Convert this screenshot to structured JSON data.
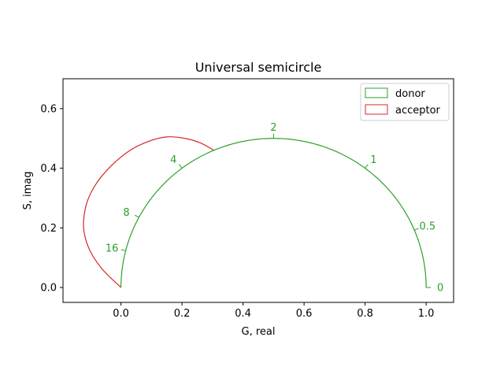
{
  "chart_data": {
    "type": "line",
    "title": "Universal semicircle",
    "xlabel": "G, real",
    "ylabel": "S, imag",
    "xlim": [
      -0.19,
      1.09
    ],
    "ylim": [
      -0.05,
      0.7
    ],
    "xticks": [
      0.0,
      0.2,
      0.4,
      0.6,
      0.8,
      1.0
    ],
    "xtick_labels": [
      "0.0",
      "0.2",
      "0.4",
      "0.6",
      "0.8",
      "1.0"
    ],
    "yticks": [
      0.0,
      0.2,
      0.4,
      0.6
    ],
    "ytick_labels": [
      "0.0",
      "0.2",
      "0.4",
      "0.6"
    ],
    "grid": false,
    "legend_position": "top-right",
    "colors": {
      "donor": "#2ca02c",
      "acceptor": "#d62728"
    },
    "series": [
      {
        "name": "donor",
        "description_curve": "semicircle",
        "center": [
          0.5,
          0.0
        ],
        "radius": 0.5
      },
      {
        "name": "acceptor",
        "description_curve": "arc",
        "points": [
          [
            0.0,
            0.0
          ],
          [
            -0.06,
            0.06
          ],
          [
            -0.1,
            0.12
          ],
          [
            -0.12,
            0.18
          ],
          [
            -0.122,
            0.23
          ],
          [
            -0.11,
            0.29
          ],
          [
            -0.08,
            0.35
          ],
          [
            -0.03,
            0.41
          ],
          [
            0.03,
            0.46
          ],
          [
            0.09,
            0.49
          ],
          [
            0.15,
            0.505
          ],
          [
            0.21,
            0.5
          ],
          [
            0.26,
            0.485
          ],
          [
            0.305,
            0.46
          ]
        ]
      }
    ],
    "annotations": [
      {
        "text": "0",
        "x": 1.0,
        "y": 0.0
      },
      {
        "text": "0.5",
        "x": 0.9615,
        "y": 0.1923
      },
      {
        "text": "1",
        "x": 0.8,
        "y": 0.4
      },
      {
        "text": "2",
        "x": 0.5,
        "y": 0.5
      },
      {
        "text": "4",
        "x": 0.2,
        "y": 0.4
      },
      {
        "text": "8",
        "x": 0.0588,
        "y": 0.2353
      },
      {
        "text": "16",
        "x": 0.0154,
        "y": 0.1231
      }
    ]
  }
}
